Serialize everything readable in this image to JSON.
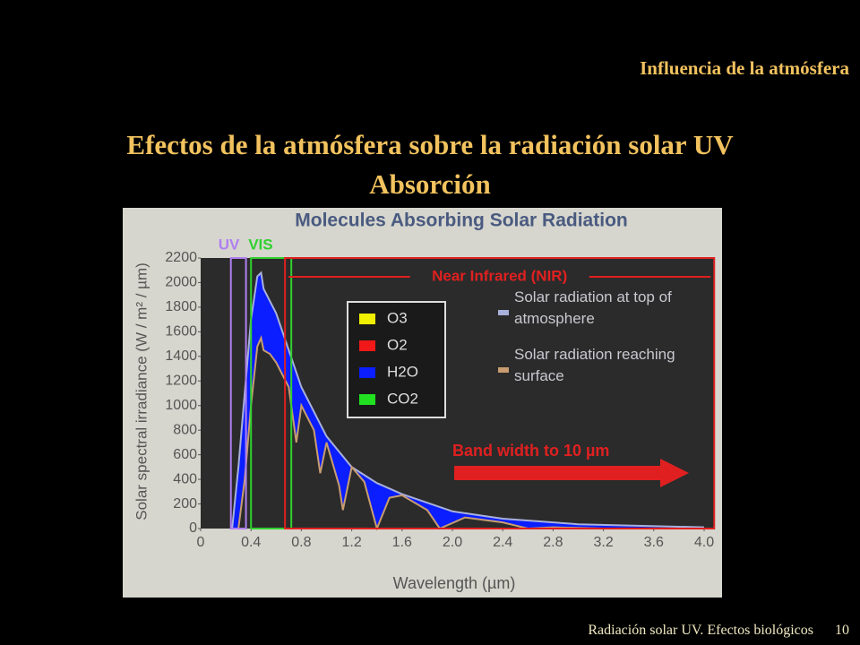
{
  "header": {
    "section": "Influencia de la atmósfera",
    "title_lines": [
      "Efectos de la atmósfera sobre la radiación solar UV",
      "Absorción"
    ]
  },
  "footer": {
    "text": "Radiación solar UV. Efectos biológicos",
    "page": "10"
  },
  "chart_data": {
    "type": "area",
    "title": "Molecules Absorbing Solar Radiation",
    "x_label": "Wavelength (µm)",
    "y_label": "Solar spectral irradiance (W / m² / µm)",
    "xlim": [
      0,
      4
    ],
    "ylim": [
      0,
      2200
    ],
    "xticks": [
      0,
      0.4,
      0.8,
      1.2,
      1.6,
      {
        "value": 2,
        "label": "2.0"
      },
      2.4,
      2.8,
      3.2,
      3.6,
      {
        "value": 4,
        "label": "4.0"
      }
    ],
    "yticks": [
      0,
      200,
      400,
      600,
      800,
      1000,
      1200,
      1400,
      1600,
      1800,
      2000,
      2200
    ],
    "absorption_color": "#0a1eff",
    "series": [
      {
        "name": "Solar radiation at top of atmosphere",
        "color": "#a8b0dc",
        "x": [
          0.25,
          0.3,
          0.35,
          0.4,
          0.45,
          0.48,
          0.5,
          0.55,
          0.6,
          0.7,
          0.8,
          1.0,
          1.2,
          1.4,
          1.6,
          2.0,
          2.4,
          3.0,
          4.0
        ],
        "values": [
          0,
          500,
          1100,
          1700,
          2050,
          2080,
          1950,
          1850,
          1750,
          1450,
          1150,
          750,
          500,
          370,
          280,
          140,
          80,
          35,
          10
        ]
      },
      {
        "name": "Solar radiation reaching surface",
        "color": "#c89c70",
        "x": [
          0.3,
          0.35,
          0.4,
          0.45,
          0.48,
          0.5,
          0.55,
          0.6,
          0.7,
          0.76,
          0.8,
          0.9,
          0.95,
          1.0,
          1.1,
          1.13,
          1.2,
          1.3,
          1.4,
          1.5,
          1.6,
          1.8,
          1.9,
          2.1,
          2.4,
          2.6,
          2.8,
          3.2,
          4.0
        ],
        "values": [
          0,
          400,
          1000,
          1480,
          1550,
          1450,
          1420,
          1350,
          1150,
          700,
          1000,
          800,
          450,
          700,
          350,
          150,
          500,
          380,
          0,
          250,
          270,
          150,
          0,
          90,
          50,
          0,
          10,
          0,
          0
        ]
      }
    ],
    "absorbers": [
      {
        "name": "O3",
        "color": "#f0f000"
      },
      {
        "name": "O2",
        "color": "#f01818"
      },
      {
        "name": "H2O",
        "color": "#0a1eff"
      },
      {
        "name": "CO2",
        "color": "#20e020"
      }
    ],
    "bands": [
      {
        "name": "UV",
        "xlim": [
          0.24,
          0.36
        ],
        "color": "#b080f0"
      },
      {
        "name": "VIS",
        "xlim": [
          0.4,
          0.72
        ],
        "color": "#30d030"
      },
      {
        "name": "Near Infrared (NIR)",
        "xlim": [
          0.67,
          4.08
        ],
        "color": "#e02020"
      }
    ],
    "annotation": "Band width to 10 µm"
  }
}
